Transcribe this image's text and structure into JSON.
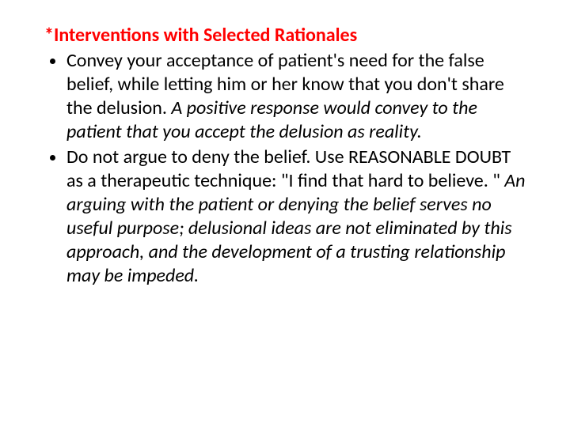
{
  "slide": {
    "heading": "*Interventions with Selected Rationales",
    "heading_color": "#ff0000",
    "body_color": "#000000",
    "font_size_pt": 24,
    "bullets": [
      {
        "plain": "Convey your acceptance of patient's need for the false belief, while letting him or her know that you don't share the delusion. ",
        "italic": "A positive response would convey to the patient that you accept the delusion as reality."
      },
      {
        "plain": "Do not argue to deny the belief. Use REASONABLE DOUBT as a therapeutic technique: \"I find that hard to believe. \" ",
        "italic": "An arguing with the patient or denying the belief serves no useful purpose; delusional ideas are not eliminated by this approach, and the development of a trusting relationship may be impeded."
      }
    ],
    "background_color": "#ffffff"
  }
}
